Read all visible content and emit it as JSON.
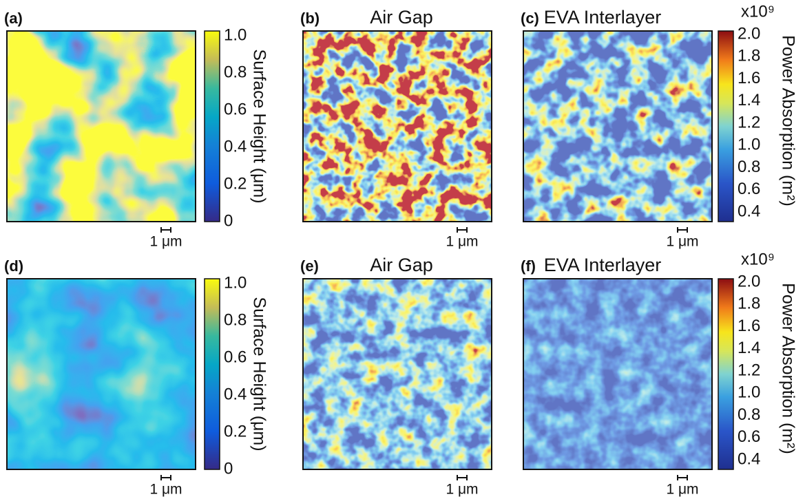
{
  "panels": [
    {
      "label": "(a)",
      "scale_bar": "1 μm"
    },
    {
      "label": "(b)",
      "title": "Air Gap",
      "scale_bar": "1 μm"
    },
    {
      "label": "(c)",
      "title": "EVA Interlayer",
      "scale_bar": "1 μm"
    },
    {
      "label": "(d)",
      "scale_bar": "1 μm"
    },
    {
      "label": "(e)",
      "title": "Air Gap",
      "scale_bar": "1 μm"
    },
    {
      "label": "(f)",
      "title": "EVA Interlayer",
      "scale_bar": "1 μm"
    }
  ],
  "colorbars": [
    {
      "label": "Surface Height (μm)",
      "ticks": [
        "1.0",
        "0.8",
        "0.6",
        "0.4",
        "0.2",
        "0"
      ]
    },
    {
      "multiplier": "x10⁹",
      "label": "Power Absorption (m²)",
      "ticks": [
        "2.0",
        "1.8",
        "1.6",
        "1.4",
        "1.2",
        "1.0",
        "0.8",
        "0.6",
        "0.4"
      ]
    },
    {
      "label": "Surface Height (μm)",
      "ticks": [
        "1.0",
        "0.8",
        "0.6",
        "0.4",
        "0.2",
        "0"
      ]
    },
    {
      "multiplier": "x10⁹",
      "label": "Power Absorption (m²)",
      "ticks": [
        "2.0",
        "1.8",
        "1.6",
        "1.4",
        "1.2",
        "1.0",
        "0.8",
        "0.6",
        "0.4"
      ]
    }
  ]
}
